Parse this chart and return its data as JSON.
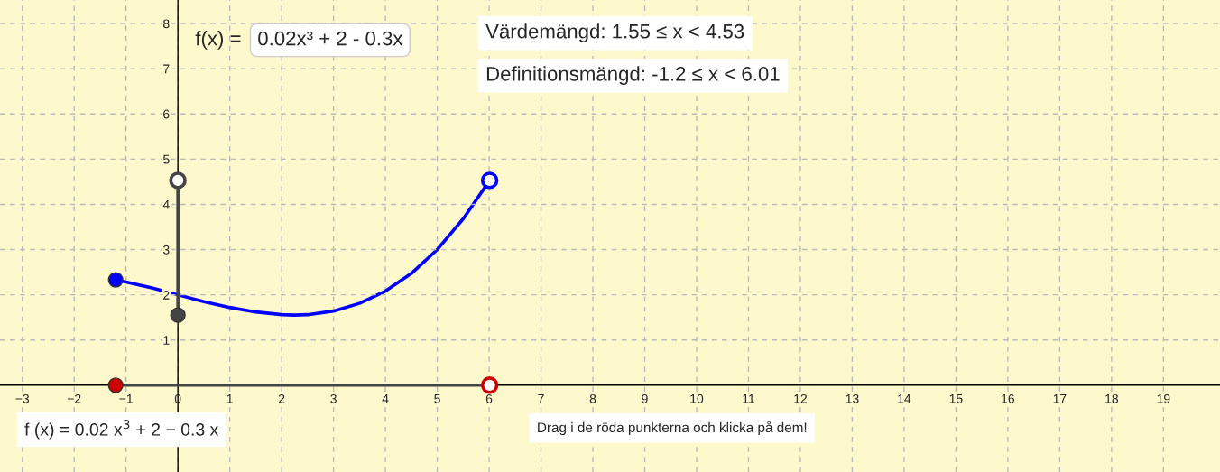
{
  "chart_data": {
    "type": "line",
    "xlim": [
      -3.43,
      20.09
    ],
    "ylim": [
      -1.92,
      8.52
    ],
    "xticks": [
      -3,
      -2,
      -1,
      0,
      1,
      2,
      3,
      4,
      5,
      6,
      7,
      8,
      9,
      10,
      11,
      12,
      13,
      14,
      15,
      16,
      17,
      18,
      19
    ],
    "yticks": [
      1,
      2,
      3,
      4,
      5,
      6,
      7,
      8
    ],
    "grid": true,
    "line_style": "solid",
    "series": [
      {
        "type": "line",
        "color": "#0000ff",
        "x": [
          -1.2,
          -1,
          -0.5,
          0,
          0.5,
          1,
          1.5,
          2,
          2.24,
          2.5,
          3,
          3.5,
          4,
          4.5,
          5,
          5.5,
          6.01
        ],
        "values": [
          2.33,
          2.28,
          2.15,
          2.0,
          1.85,
          1.72,
          1.62,
          1.56,
          1.55,
          1.56,
          1.64,
          1.81,
          2.08,
          2.47,
          3.0,
          3.68,
          4.53
        ]
      },
      {
        "type": "line",
        "color": "#444444",
        "x": [
          0,
          0
        ],
        "values": [
          1.55,
          4.53
        ]
      },
      {
        "type": "line",
        "color": "#444444",
        "x": [
          -1.2,
          6.01
        ],
        "values": [
          0,
          0
        ]
      },
      {
        "type": "scatter",
        "marker": "circle",
        "color": "#0000ff",
        "x": [
          -1.2,
          6.01
        ],
        "values": [
          2.33,
          4.53
        ]
      },
      {
        "type": "scatter",
        "marker": "circle",
        "color": "#444444",
        "x": [
          0,
          0
        ],
        "values": [
          1.55,
          4.53
        ]
      },
      {
        "type": "scatter",
        "marker": "circle",
        "color": "#cc0000",
        "x": [
          -1.2,
          6.01
        ],
        "values": [
          0,
          0
        ]
      }
    ],
    "annotations": [
      "f(x) =",
      "0.02x³ + 2 - 0.3x",
      "Värdemängd: 1.55 ≤ x < 4.53",
      "Definitionsmängd: -1.2 ≤ x < 6.01",
      "f (x) = 0.02 x$^{3}$ + 2 − 0.3 x",
      "Drag i de röda punkterna och klicka på dem!"
    ]
  }
}
